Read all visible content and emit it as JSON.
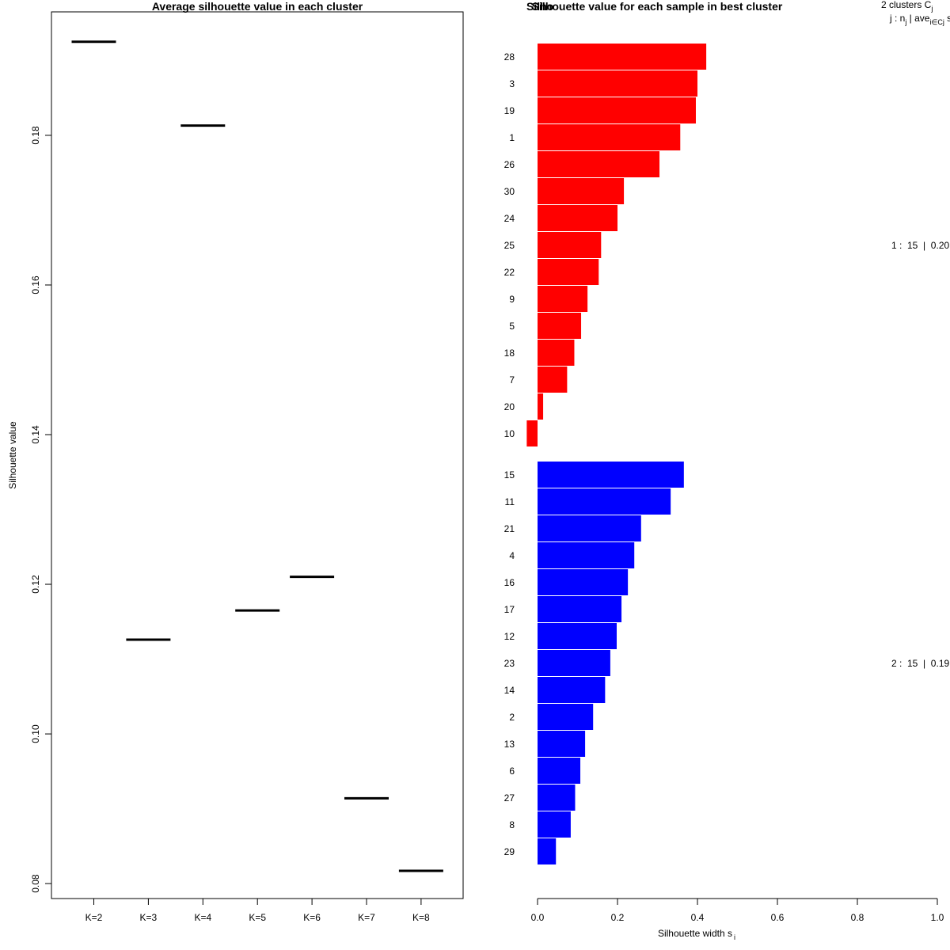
{
  "chart_data": [
    {
      "type": "line",
      "title": "Average silhouette value in each cluster",
      "xlabel": "",
      "ylabel": "Silhouette value",
      "ylim": [
        0.078,
        0.1965
      ],
      "yticks": [
        "0.08",
        "0.10",
        "0.12",
        "0.14",
        "0.16",
        "0.18"
      ],
      "yticks_values": [
        0.08,
        0.1,
        0.12,
        0.14,
        0.16,
        0.18
      ],
      "categories": [
        "K=2",
        "K=3",
        "K=4",
        "K=5",
        "K=6",
        "K=7",
        "K=8"
      ],
      "values": [
        0.1925,
        0.1126,
        0.1813,
        0.1165,
        0.121,
        0.0914,
        0.0817
      ]
    },
    {
      "type": "bar",
      "orientation": "horizontal",
      "title": "Silhouette value for each sample in best cluster",
      "title_overlay": "Silho",
      "xlabel": "Silhouette width s",
      "xlabel_sub": "i",
      "xlim": [
        0.0,
        1.0
      ],
      "xticks": [
        "0.0",
        "0.2",
        "0.4",
        "0.6",
        "0.8",
        "1.0"
      ],
      "xticks_values": [
        0.0,
        0.2,
        0.4,
        0.6,
        0.8,
        1.0
      ],
      "legend_header": [
        "2 clusters C",
        "j",
        "j : n",
        "j",
        "| ave",
        "i∈Cj",
        "s",
        "i"
      ],
      "clusters": [
        {
          "name": "1",
          "color": "#ff0000",
          "summary": "1 :  15  |  0.20",
          "samples": [
            "28",
            "3",
            "19",
            "1",
            "26",
            "30",
            "24",
            "25",
            "22",
            "9",
            "5",
            "18",
            "7",
            "20",
            "10"
          ],
          "values": [
            0.422,
            0.4,
            0.396,
            0.357,
            0.305,
            0.216,
            0.2,
            0.159,
            0.153,
            0.125,
            0.109,
            0.092,
            0.074,
            0.014,
            -0.027
          ]
        },
        {
          "name": "2",
          "color": "#0000ff",
          "summary": "2 :  15  |  0.19",
          "samples": [
            "15",
            "11",
            "21",
            "4",
            "16",
            "17",
            "12",
            "23",
            "14",
            "2",
            "13",
            "6",
            "27",
            "8",
            "29"
          ],
          "values": [
            0.366,
            0.333,
            0.259,
            0.242,
            0.226,
            0.21,
            0.198,
            0.182,
            0.169,
            0.139,
            0.119,
            0.107,
            0.094,
            0.083,
            0.046
          ]
        }
      ]
    }
  ]
}
